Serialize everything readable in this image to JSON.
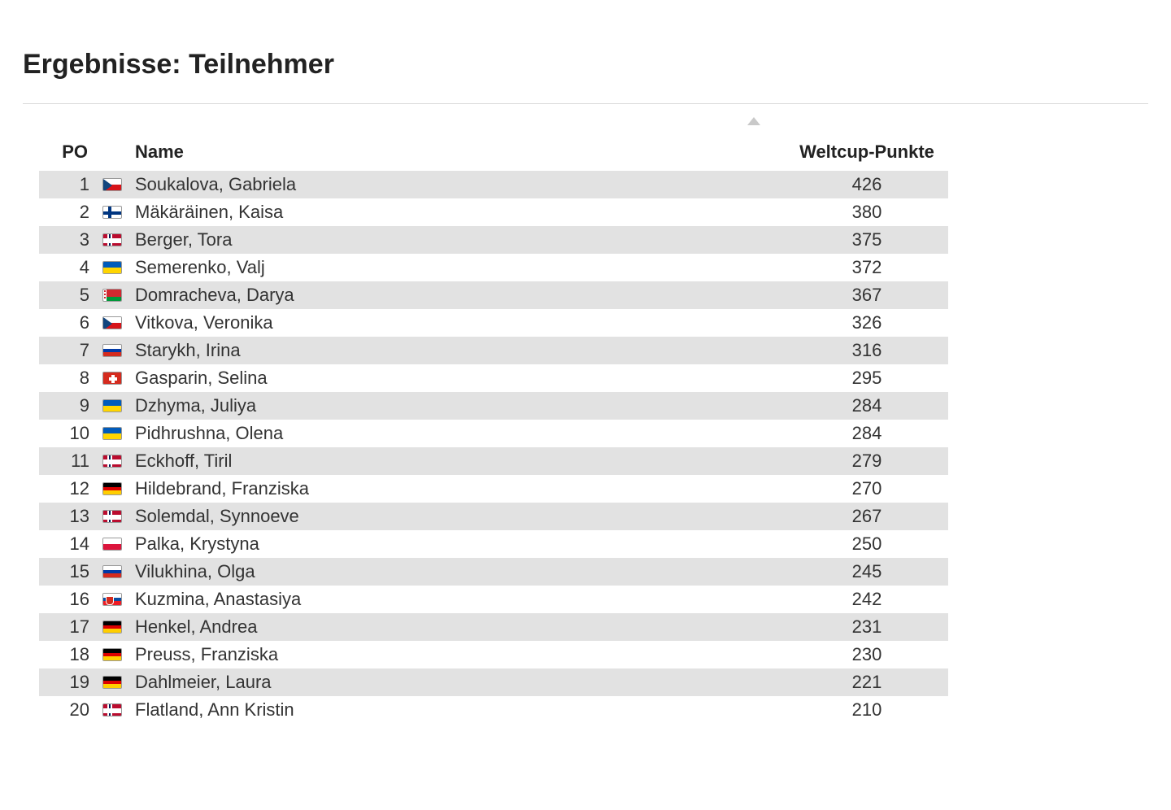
{
  "title": "Ergebnisse: Teilnehmer",
  "columns": {
    "po": "PO",
    "name": "Name",
    "points": "Weltcup-Punkte"
  },
  "colors": {
    "row_odd_bg": "#e2e2e2",
    "row_even_bg": "#ffffff",
    "text": "#333333",
    "heading": "#222222",
    "divider": "#d9d9d9",
    "scroll_hint": "#bdbdbd"
  },
  "flag_palettes": {
    "CZE": {
      "type": "cze",
      "top": "#ffffff",
      "bottom": "#d7141a",
      "triangle": "#11457e"
    },
    "FIN": {
      "type": "fin"
    },
    "NOR": {
      "type": "nor"
    },
    "UKR": {
      "type": "h2",
      "c1": "#005bbb",
      "c2": "#ffd500"
    },
    "BLR": {
      "type": "blr",
      "top": "#d22730",
      "bottom": "#009739",
      "band": "#d22730"
    },
    "RUS": {
      "type": "h3",
      "c1": "#ffffff",
      "c2": "#0039a6",
      "c3": "#d52b1e"
    },
    "SUI": {
      "type": "sui"
    },
    "GER": {
      "type": "h3",
      "c1": "#000000",
      "c2": "#dd0000",
      "c3": "#ffce00"
    },
    "POL": {
      "type": "h2",
      "c1": "#ffffff",
      "c2": "#dc143c"
    },
    "SVK": {
      "type": "svk",
      "c1": "#ffffff",
      "c2": "#0b4ea2",
      "c3": "#ee1c25"
    }
  },
  "rows": [
    {
      "po": 1,
      "flag": "CZE",
      "name": "Soukalova, Gabriela",
      "points": 426
    },
    {
      "po": 2,
      "flag": "FIN",
      "name": "Mäkäräinen, Kaisa",
      "points": 380
    },
    {
      "po": 3,
      "flag": "NOR",
      "name": "Berger, Tora",
      "points": 375
    },
    {
      "po": 4,
      "flag": "UKR",
      "name": "Semerenko, Valj",
      "points": 372
    },
    {
      "po": 5,
      "flag": "BLR",
      "name": "Domracheva, Darya",
      "points": 367
    },
    {
      "po": 6,
      "flag": "CZE",
      "name": "Vitkova, Veronika",
      "points": 326
    },
    {
      "po": 7,
      "flag": "RUS",
      "name": "Starykh, Irina",
      "points": 316
    },
    {
      "po": 8,
      "flag": "SUI",
      "name": "Gasparin, Selina",
      "points": 295
    },
    {
      "po": 9,
      "flag": "UKR",
      "name": "Dzhyma, Juliya",
      "points": 284
    },
    {
      "po": 10,
      "flag": "UKR",
      "name": "Pidhrushna, Olena",
      "points": 284
    },
    {
      "po": 11,
      "flag": "NOR",
      "name": "Eckhoff, Tiril",
      "points": 279
    },
    {
      "po": 12,
      "flag": "GER",
      "name": "Hildebrand, Franziska",
      "points": 270
    },
    {
      "po": 13,
      "flag": "NOR",
      "name": "Solemdal, Synnoeve",
      "points": 267
    },
    {
      "po": 14,
      "flag": "POL",
      "name": "Palka, Krystyna",
      "points": 250
    },
    {
      "po": 15,
      "flag": "RUS",
      "name": "Vilukhina, Olga",
      "points": 245
    },
    {
      "po": 16,
      "flag": "SVK",
      "name": "Kuzmina, Anastasiya",
      "points": 242
    },
    {
      "po": 17,
      "flag": "GER",
      "name": "Henkel, Andrea",
      "points": 231
    },
    {
      "po": 18,
      "flag": "GER",
      "name": "Preuss, Franziska",
      "points": 230
    },
    {
      "po": 19,
      "flag": "GER",
      "name": "Dahlmeier, Laura",
      "points": 221
    },
    {
      "po": 20,
      "flag": "NOR",
      "name": "Flatland, Ann Kristin",
      "points": 210
    }
  ]
}
